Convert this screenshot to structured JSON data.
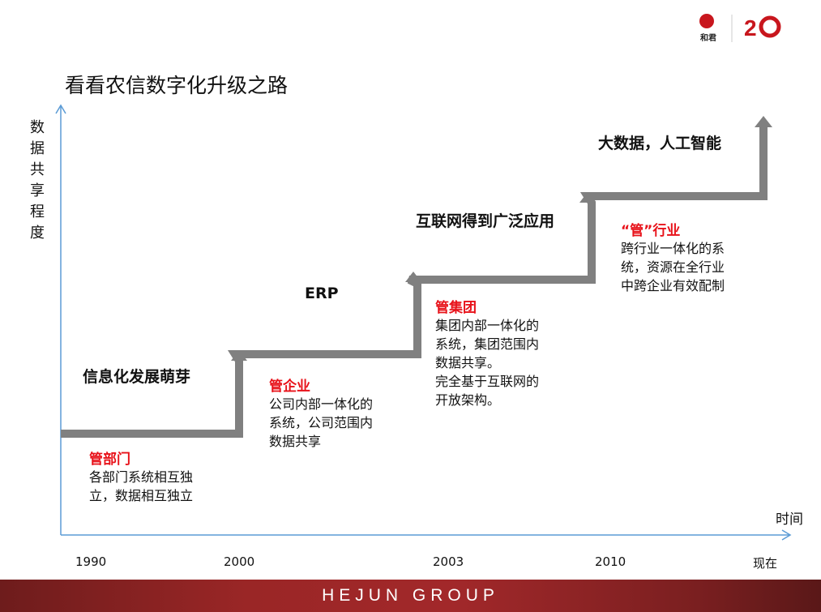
{
  "title": "看看农信数字化升级之路",
  "y_axis_label": "数据共享程度",
  "x_axis_label": "时间",
  "years": [
    "1990",
    "2000",
    "2003",
    "2010",
    "现在"
  ],
  "stages": [
    {
      "label": "信息化发展萌芽",
      "head": "管部门",
      "desc": [
        "各部门系统相互独",
        "立，数据相互独立"
      ]
    },
    {
      "label": "ERP",
      "head": "管企业",
      "desc": [
        "公司内部一体化的",
        "系统，公司范围内",
        "数据共享"
      ]
    },
    {
      "label": "互联网得到广泛应用",
      "head": "管集团",
      "desc": [
        "集团内部一体化的",
        "系统，集团范围内",
        "数据共享。",
        "完全基于互联网的",
        "开放架构。"
      ]
    },
    {
      "label": "大数据，人工智能",
      "head": "“管”行业",
      "desc": [
        "跨行业一体化的系",
        "统，资源在全行业",
        "中跨企业有效配制"
      ]
    }
  ],
  "logo": {
    "brand": "和君",
    "anniversary": "20"
  },
  "footer": "HEJUN GROUP",
  "colors": {
    "axis": "#5b9bd5",
    "step": "#808080",
    "accent": "#e8121a",
    "footer": "#9a2626"
  }
}
